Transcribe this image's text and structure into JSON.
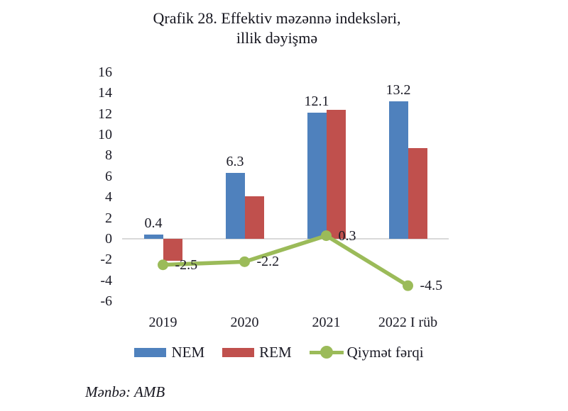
{
  "title": {
    "line1": "Qrafik 28. Effektiv məzənnə indeksləri,",
    "line2": "illik dəyişmə"
  },
  "source": "Mənbə: AMB",
  "colors": {
    "nem_blue": "#4f81bd",
    "rem_red": "#c0504d",
    "line_green": "#9bbb59",
    "zero_line_gray": "#d9d9d9"
  },
  "chart_data": {
    "type": "bar",
    "subtype": "grouped bars with overlay line",
    "title": "Qrafik 28. Effektiv məzənnə indeksləri, illik dəyişmə",
    "categories": [
      "2019",
      "2020",
      "2021",
      "2022 I rüb"
    ],
    "series": [
      {
        "name": "NEM",
        "type": "bar",
        "color": "#4f81bd",
        "values": [
          0.4,
          6.3,
          12.1,
          13.2
        ],
        "labels": [
          "0.4",
          "6.3",
          "12.1",
          "13.2"
        ]
      },
      {
        "name": "REM",
        "type": "bar",
        "color": "#c0504d",
        "values": [
          -2.1,
          4.1,
          12.4,
          8.7
        ],
        "labels": null
      },
      {
        "name": "Qiymət fərqi",
        "type": "line",
        "color": "#9bbb59",
        "values": [
          -2.5,
          -2.2,
          0.3,
          -4.5
        ],
        "labels": [
          "-2.5",
          "-2.2",
          "0.3",
          "-4.5"
        ]
      }
    ],
    "xlabel": "",
    "ylabel": "",
    "ylim": [
      -6,
      16
    ],
    "yticks": [
      16,
      14,
      12,
      10,
      8,
      6,
      4,
      2,
      0,
      -2,
      -4,
      -6
    ],
    "grid": false,
    "gridlines": "zero line only",
    "legend_position": "bottom"
  },
  "legend": {
    "items": [
      {
        "label": "NEM",
        "color": "#4f81bd",
        "marker": "rect"
      },
      {
        "label": "REM",
        "color": "#c0504d",
        "marker": "rect"
      },
      {
        "label": "Qiymət fərqi",
        "color": "#9bbb59",
        "marker": "line-dot"
      }
    ]
  }
}
